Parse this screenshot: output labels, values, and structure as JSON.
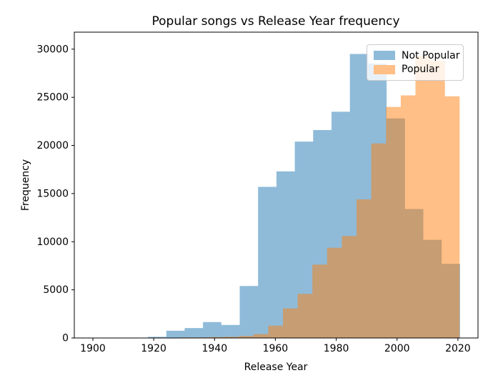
{
  "chart_data": {
    "type": "histogram",
    "title": "Popular songs vs Release Year frequency",
    "xlabel": "Release Year",
    "ylabel": "Frequency",
    "xlim": [
      1893.9,
      2026.6
    ],
    "ylim": [
      0,
      31766
    ],
    "xticks": [
      1900,
      1920,
      1940,
      1960,
      1980,
      2000,
      2020
    ],
    "yticks": [
      0,
      5000,
      10000,
      15000,
      20000,
      25000,
      30000
    ],
    "grid": false,
    "bar_alpha": 0.5,
    "legend_position": "upper right",
    "series": [
      {
        "name": "Not Popular",
        "color": "#1f77b4",
        "bin_start": 1900,
        "bin_width": 6.035,
        "counts": [
          5,
          10,
          20,
          120,
          750,
          1030,
          1650,
          1350,
          5400,
          15700,
          17300,
          20400,
          21600,
          23500,
          29500,
          28500,
          22800,
          13400,
          10200,
          7700
        ]
      },
      {
        "name": "Popular",
        "color": "#ff7f0e",
        "bin_start": 1928.6,
        "bin_width": 4.84,
        "counts": [
          50,
          70,
          90,
          120,
          200,
          410,
          1280,
          3070,
          4590,
          7630,
          9370,
          10600,
          14400,
          20200,
          24000,
          25200,
          29300,
          28800,
          25100
        ]
      }
    ]
  },
  "legend": {
    "items": [
      {
        "label": "Not Popular",
        "color": "#1f77b4"
      },
      {
        "label": "Popular",
        "color": "#ff7f0e"
      }
    ]
  }
}
